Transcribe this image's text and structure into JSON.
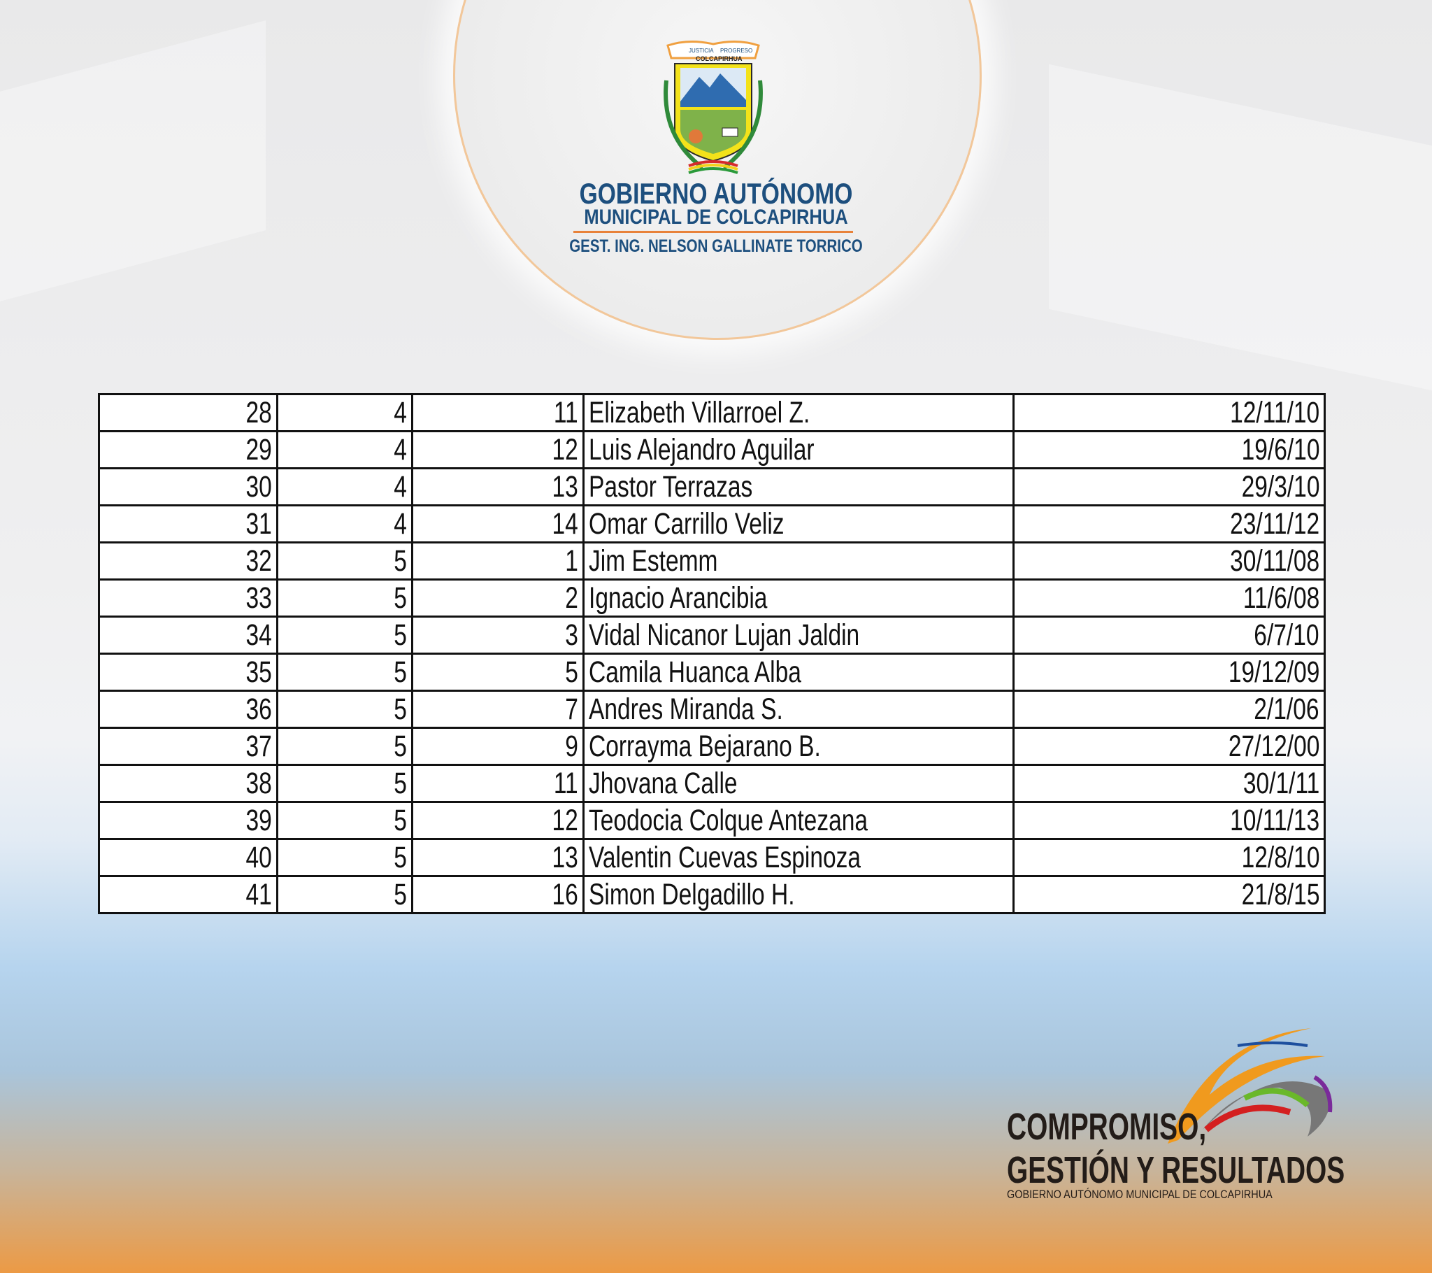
{
  "header": {
    "crest_text": [
      "JUSTICIA",
      "PROGRESO",
      "COLCAPIRHUA"
    ],
    "title_line1": "GOBIERNO AUTÓNOMO",
    "title_line2": "MUNICIPAL DE COLCAPIRHUA",
    "subtitle": "GEST. ING. NELSON GALLINATE TORRICO"
  },
  "table": {
    "rows": [
      [
        "28",
        "4",
        "11",
        "Elizabeth Villarroel Z.",
        "12/11/10"
      ],
      [
        "29",
        "4",
        "12",
        "Luis Alejandro Aguilar",
        "19/6/10"
      ],
      [
        "30",
        "4",
        "13",
        "Pastor Terrazas",
        "29/3/10"
      ],
      [
        "31",
        "4",
        "14",
        "Omar Carrillo Veliz",
        "23/11/12"
      ],
      [
        "32",
        "5",
        "1",
        "Jim Estemm",
        "30/11/08"
      ],
      [
        "33",
        "5",
        "2",
        "Ignacio Arancibia",
        "11/6/08"
      ],
      [
        "34",
        "5",
        "3",
        "Vidal Nicanor Lujan Jaldin",
        "6/7/10"
      ],
      [
        "35",
        "5",
        "5",
        "Camila Huanca Alba",
        "19/12/09"
      ],
      [
        "36",
        "5",
        "7",
        "Andres Miranda S.",
        "2/1/06"
      ],
      [
        "37",
        "5",
        "9",
        "Corrayma Bejarano B.",
        "27/12/00"
      ],
      [
        "38",
        "5",
        "11",
        "Jhovana Calle",
        "30/1/11"
      ],
      [
        "39",
        "5",
        "12",
        "Teodocia Colque Antezana",
        "10/11/13"
      ],
      [
        "40",
        "5",
        "13",
        "Valentin Cuevas Espinoza",
        "12/8/10"
      ],
      [
        "41",
        "5",
        "16",
        "Simon Delgadillo H.",
        "21/8/15"
      ]
    ]
  },
  "footer": {
    "slogan_line1": "COMPROMISO,",
    "slogan_line2": "GESTIÓN Y RESULTADOS",
    "slogan_line3": "GOBIERNO AUTÓNOMO MUNICIPAL DE COLCAPIRHUA"
  },
  "colors": {
    "brand_blue": "#1d4f7e",
    "accent_orange": "#e8823a",
    "text": "#111111"
  }
}
